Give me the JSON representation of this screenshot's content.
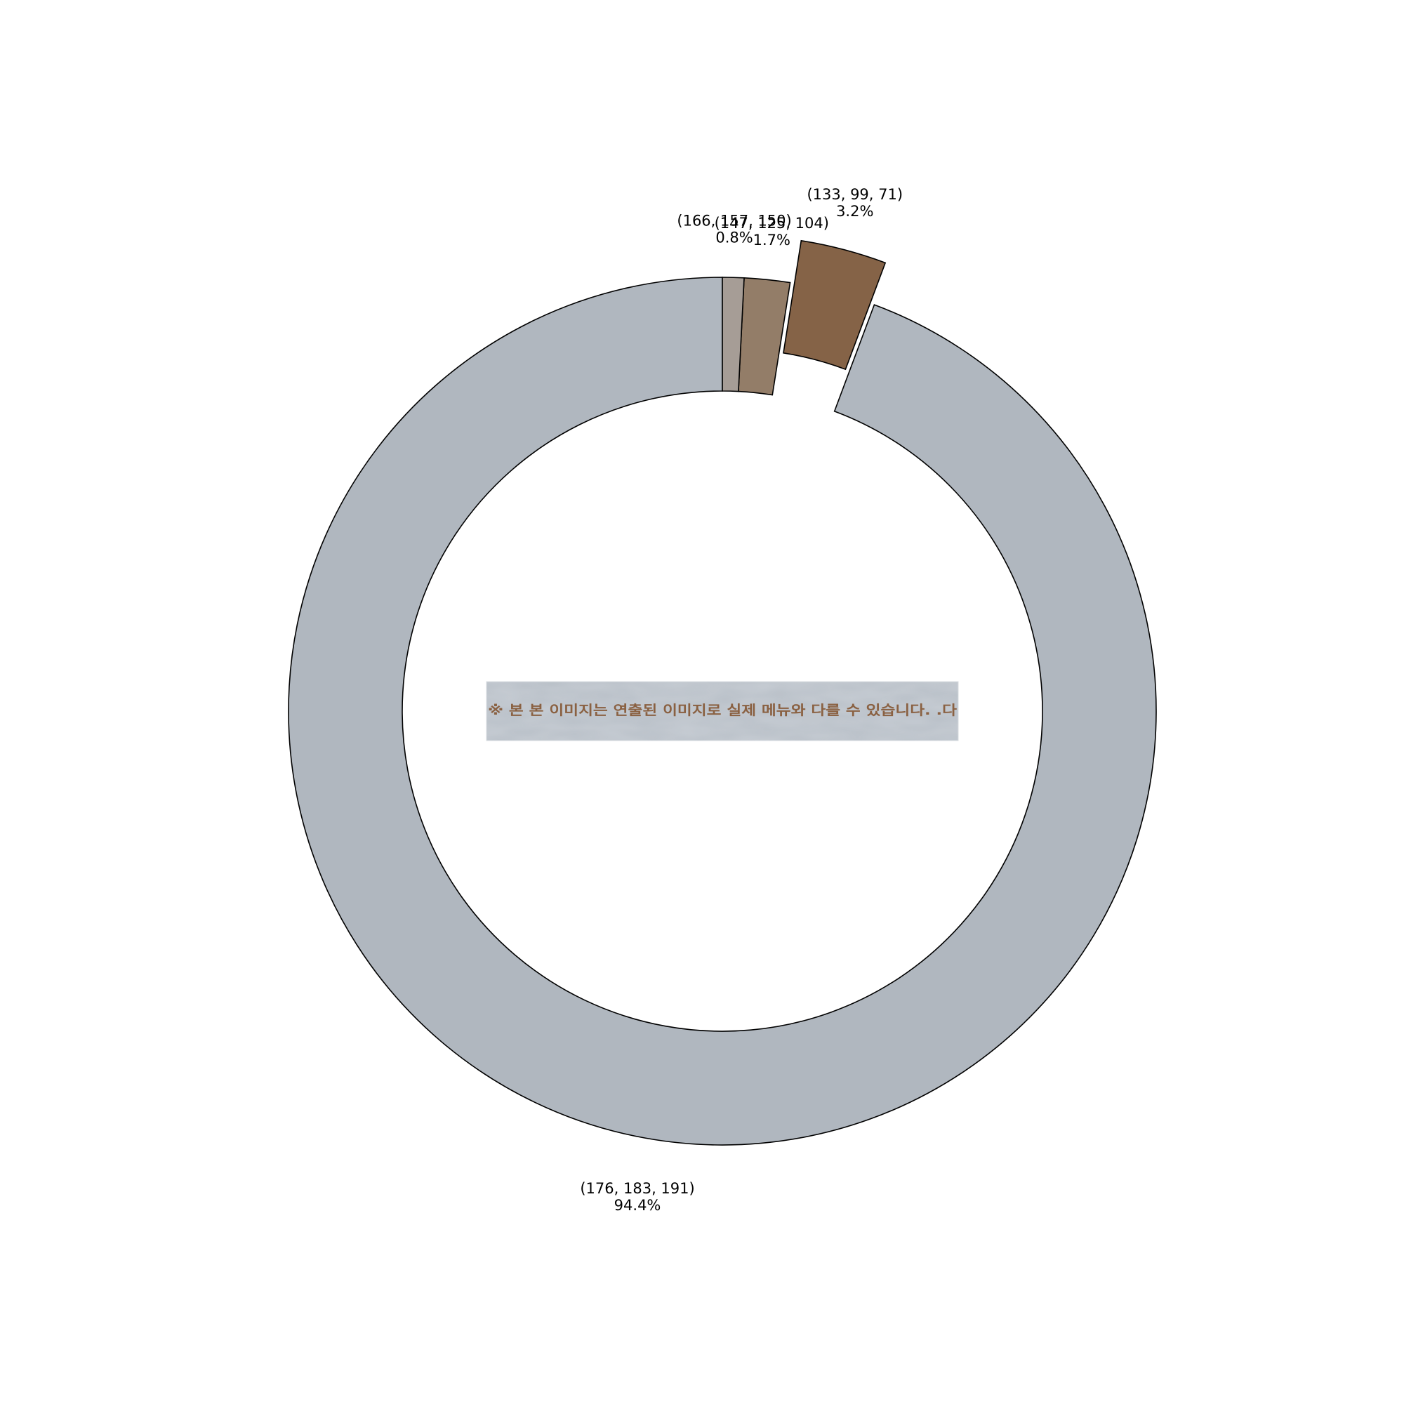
{
  "chart_data": {
    "type": "pie",
    "donut": true,
    "slices": [
      {
        "label": "(176, 183, 191)",
        "percent_label": "94.4%",
        "value": 94.4,
        "color": "#b0b7bf",
        "exploded": false
      },
      {
        "label": "(133, 99, 71)",
        "percent_label": "3.2%",
        "value": 3.2,
        "color": "#856347",
        "exploded": true
      },
      {
        "label": "(147, 125, 104)",
        "percent_label": "1.7%",
        "value": 1.7,
        "color": "#937d68",
        "exploded": false
      },
      {
        "label": "(166, 157, 150)",
        "percent_label": "0.8%",
        "value": 0.8,
        "color": "#a69d96",
        "exploded": false
      }
    ],
    "start": "top",
    "direction": "counterclockwise",
    "center_image": {
      "text": "※ 본    본 이미지는 연출된 이미지로 실제 메뉴와 다를 수 있습니다.      .다",
      "background": "#b9c0c8",
      "text_color": "#8a6142"
    }
  }
}
